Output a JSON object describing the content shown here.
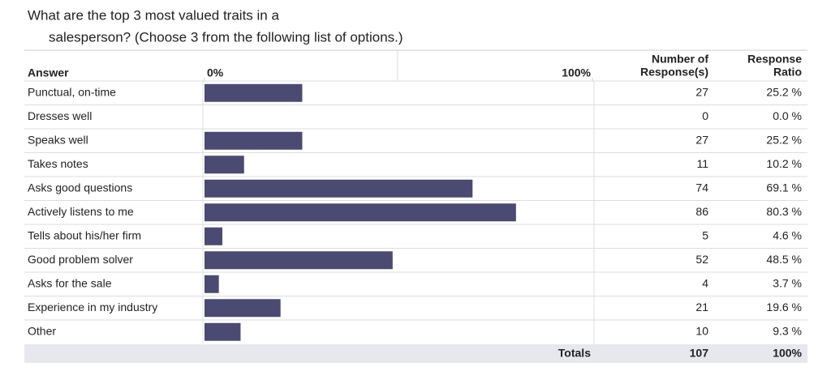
{
  "chart_data": {
    "type": "bar",
    "orientation": "horizontal",
    "title": [
      "What are the top 3 most valued traits in a",
      "salesperson? (Choose 3 from the following list of options.)"
    ],
    "columns": {
      "answer": "Answer",
      "responses": [
        "Number of",
        "Response(s)"
      ],
      "ratio": [
        "Response",
        "Ratio"
      ]
    },
    "categories": [
      "Punctual, on-time",
      "Dresses well",
      "Speaks well",
      "Takes notes",
      "Asks good questions",
      "Actively listens to me",
      "Tells about his/her firm",
      "Good problem solver",
      "Asks for the sale",
      "Experience in my industry",
      "Other"
    ],
    "values": [
      25.2,
      0.0,
      25.2,
      10.2,
      69.1,
      80.3,
      4.6,
      48.5,
      3.7,
      19.6,
      9.3
    ],
    "value_labels": [
      "25.2 %",
      "0.0 %",
      "25.2 %",
      "10.2 %",
      "69.1 %",
      "80.3 %",
      "4.6 %",
      "48.5 %",
      "3.7 %",
      "19.6 %",
      "9.3 %"
    ],
    "responses": [
      27,
      0,
      27,
      11,
      74,
      86,
      5,
      52,
      4,
      21,
      10
    ],
    "color": "#4a4a72",
    "xlim": [
      0,
      100
    ],
    "xticks": [
      {
        "value": 0,
        "label": "0%"
      },
      {
        "value": 100,
        "label": "100%"
      }
    ],
    "totals": {
      "label": "Totals",
      "responses": 107,
      "ratio": {
        "value": 100,
        "label": "100%"
      }
    }
  }
}
